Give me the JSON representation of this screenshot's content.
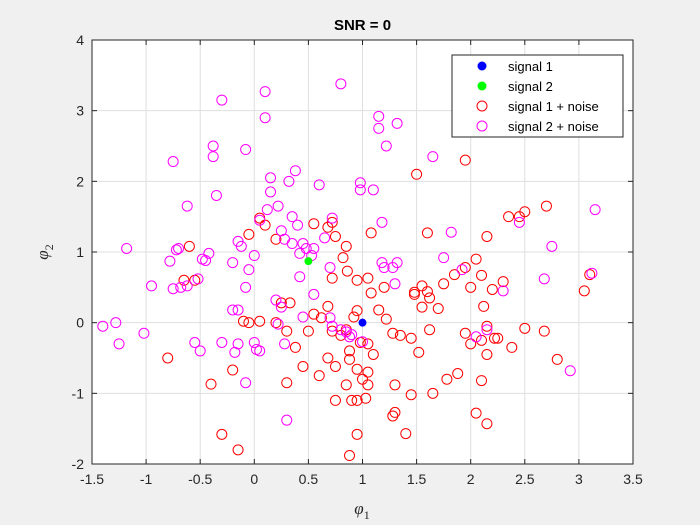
{
  "chart_data": {
    "type": "scatter",
    "title": "SNR = 0",
    "xlabel": "φ",
    "xlabel_sub": "1",
    "ylabel": "φ",
    "ylabel_sub": "2",
    "xlim": [
      -1.5,
      3.5
    ],
    "ylim": [
      -2,
      4
    ],
    "xticks": [
      "-1.5",
      "-1",
      "-0.5",
      "0",
      "0.5",
      "1",
      "1.5",
      "2",
      "2.5",
      "3",
      "3.5"
    ],
    "yticks": [
      "-2",
      "-1",
      "0",
      "1",
      "2",
      "3",
      "4"
    ],
    "grid": true,
    "legend_position": "top-right",
    "colors": {
      "signal1": "#0000ff",
      "signal2": "#00ff00",
      "noise1": "#ff0000",
      "noise2": "#ff00ff"
    },
    "series": [
      {
        "name": "signal 1",
        "marker": "filled-circle",
        "color": "#0000ff",
        "points": [
          [
            1.0,
            0.0
          ]
        ]
      },
      {
        "name": "signal 2",
        "marker": "filled-circle",
        "color": "#00ff00",
        "points": [
          [
            0.5,
            0.87
          ]
        ]
      },
      {
        "name": "signal 1 + noise",
        "marker": "open-circle",
        "color": "#ff0000",
        "points": [
          [
            0.05,
            1.48
          ],
          [
            0.1,
            1.38
          ],
          [
            -0.05,
            1.25
          ],
          [
            0.2,
            1.18
          ],
          [
            0.55,
            1.4
          ],
          [
            0.72,
            1.42
          ],
          [
            0.68,
            1.35
          ],
          [
            0.75,
            1.22
          ],
          [
            0.85,
            1.08
          ],
          [
            0.82,
            0.92
          ],
          [
            1.08,
            1.27
          ],
          [
            0.72,
            0.63
          ],
          [
            0.86,
            0.73
          ],
          [
            0.95,
            0.6
          ],
          [
            1.05,
            0.63
          ],
          [
            1.08,
            0.42
          ],
          [
            1.2,
            0.5
          ],
          [
            1.15,
            0.18
          ],
          [
            1.22,
            0.05
          ],
          [
            1.28,
            -0.15
          ],
          [
            0.95,
            0.17
          ],
          [
            0.92,
            0.08
          ],
          [
            0.85,
            -0.1
          ],
          [
            0.8,
            -0.18
          ],
          [
            0.72,
            -0.12
          ],
          [
            0.68,
            0.23
          ],
          [
            0.62,
            0.07
          ],
          [
            0.55,
            0.12
          ],
          [
            0.5,
            -0.12
          ],
          [
            0.3,
            -0.12
          ],
          [
            0.2,
            0.0
          ],
          [
            0.05,
            0.02
          ],
          [
            -0.05,
            0.0
          ],
          [
            -0.1,
            0.02
          ],
          [
            0.25,
            0.28
          ],
          [
            0.33,
            0.28
          ],
          [
            1.48,
            0.43
          ],
          [
            1.48,
            0.4
          ],
          [
            1.55,
            0.52
          ],
          [
            1.6,
            0.44
          ],
          [
            1.55,
            0.22
          ],
          [
            1.7,
            0.2
          ],
          [
            1.62,
            0.35
          ],
          [
            1.6,
            1.27
          ],
          [
            1.75,
            0.55
          ],
          [
            1.85,
            0.68
          ],
          [
            1.95,
            0.78
          ],
          [
            2.1,
            0.67
          ],
          [
            2.0,
            0.5
          ],
          [
            2.05,
            0.9
          ],
          [
            2.15,
            1.22
          ],
          [
            2.2,
            0.47
          ],
          [
            2.3,
            0.58
          ],
          [
            2.35,
            1.5
          ],
          [
            2.45,
            1.5
          ],
          [
            2.5,
            1.57
          ],
          [
            2.7,
            1.65
          ],
          [
            3.05,
            0.45
          ],
          [
            3.1,
            0.68
          ],
          [
            1.95,
            2.3
          ],
          [
            1.5,
            2.1
          ],
          [
            1.35,
            -0.18
          ],
          [
            1.45,
            -0.22
          ],
          [
            1.62,
            -0.1
          ],
          [
            1.52,
            -0.42
          ],
          [
            1.95,
            -0.15
          ],
          [
            2.0,
            -0.3
          ],
          [
            2.1,
            -0.25
          ],
          [
            2.15,
            -0.45
          ],
          [
            2.22,
            -0.22
          ],
          [
            2.25,
            -0.22
          ],
          [
            2.38,
            -0.35
          ],
          [
            2.5,
            -0.08
          ],
          [
            2.68,
            -0.12
          ],
          [
            2.8,
            -0.52
          ],
          [
            2.1,
            -0.82
          ],
          [
            1.88,
            -0.72
          ],
          [
            1.78,
            -0.8
          ],
          [
            1.65,
            -1.0
          ],
          [
            1.45,
            -1.02
          ],
          [
            1.3,
            -0.88
          ],
          [
            1.3,
            -1.27
          ],
          [
            1.28,
            -1.32
          ],
          [
            1.4,
            -1.57
          ],
          [
            1.05,
            -0.88
          ],
          [
            1.05,
            -0.7
          ],
          [
            1.0,
            -0.8
          ],
          [
            0.95,
            -0.66
          ],
          [
            0.88,
            -0.52
          ],
          [
            0.88,
            -0.4
          ],
          [
            0.98,
            -0.28
          ],
          [
            1.05,
            -0.3
          ],
          [
            1.1,
            -0.45
          ],
          [
            0.75,
            -0.62
          ],
          [
            0.68,
            -0.5
          ],
          [
            0.6,
            -0.75
          ],
          [
            0.45,
            -0.62
          ],
          [
            0.38,
            -0.35
          ],
          [
            0.3,
            -0.85
          ],
          [
            0.75,
            -1.1
          ],
          [
            0.85,
            -0.88
          ],
          [
            0.9,
            -1.1
          ],
          [
            0.95,
            -1.1
          ],
          [
            1.03,
            -1.07
          ],
          [
            0.95,
            -1.58
          ],
          [
            0.88,
            -1.88
          ],
          [
            -0.3,
            -1.58
          ],
          [
            -0.15,
            -1.8
          ],
          [
            -0.2,
            -0.67
          ],
          [
            -0.4,
            -0.87
          ],
          [
            -0.8,
            -0.5
          ],
          [
            -0.55,
            0.6
          ],
          [
            -0.65,
            0.6
          ],
          [
            -0.6,
            1.08
          ],
          [
            2.05,
            -1.28
          ],
          [
            2.15,
            -1.43
          ],
          [
            2.15,
            -0.05
          ],
          [
            2.12,
            0.23
          ]
        ]
      },
      {
        "name": "signal 2 + noise",
        "marker": "open-circle",
        "color": "#ff00ff",
        "points": [
          [
            -1.4,
            -0.05
          ],
          [
            -1.28,
            0.0
          ],
          [
            -1.25,
            -0.3
          ],
          [
            -1.02,
            -0.15
          ],
          [
            -1.18,
            1.05
          ],
          [
            -0.95,
            0.52
          ],
          [
            -0.78,
            0.87
          ],
          [
            -0.75,
            0.48
          ],
          [
            -0.72,
            1.03
          ],
          [
            -0.7,
            1.05
          ],
          [
            -0.68,
            0.5
          ],
          [
            -0.62,
            0.52
          ],
          [
            -0.52,
            0.62
          ],
          [
            -0.48,
            0.9
          ],
          [
            -0.45,
            0.88
          ],
          [
            -0.42,
            0.98
          ],
          [
            -0.5,
            -0.4
          ],
          [
            -0.3,
            -0.28
          ],
          [
            -0.15,
            -0.3
          ],
          [
            -0.18,
            -0.42
          ],
          [
            -0.08,
            -0.85
          ],
          [
            0.02,
            -0.38
          ],
          [
            0.0,
            -0.28
          ],
          [
            -0.2,
            0.18
          ],
          [
            -0.15,
            0.18
          ],
          [
            -0.2,
            0.85
          ],
          [
            -0.15,
            1.15
          ],
          [
            -0.08,
            0.5
          ],
          [
            -0.05,
            0.75
          ],
          [
            0.0,
            0.95
          ],
          [
            -0.12,
            1.08
          ],
          [
            0.05,
            1.45
          ],
          [
            0.12,
            1.6
          ],
          [
            0.15,
            1.85
          ],
          [
            0.15,
            2.05
          ],
          [
            0.22,
            1.65
          ],
          [
            0.25,
            1.3
          ],
          [
            0.28,
            1.18
          ],
          [
            0.35,
            1.5
          ],
          [
            0.4,
            1.38
          ],
          [
            0.35,
            1.12
          ],
          [
            0.42,
            0.98
          ],
          [
            0.45,
            1.12
          ],
          [
            0.48,
            1.05
          ],
          [
            0.53,
            0.95
          ],
          [
            0.55,
            1.05
          ],
          [
            0.42,
            0.65
          ],
          [
            0.38,
            2.15
          ],
          [
            0.32,
            2.0
          ],
          [
            0.6,
            1.95
          ],
          [
            0.65,
            1.2
          ],
          [
            0.7,
            0.78
          ],
          [
            0.72,
            1.48
          ],
          [
            0.55,
            0.4
          ],
          [
            0.45,
            0.08
          ],
          [
            0.2,
            0.32
          ],
          [
            0.25,
            0.22
          ],
          [
            0.22,
            -0.02
          ],
          [
            0.28,
            -0.3
          ],
          [
            0.3,
            -1.38
          ],
          [
            0.05,
            -0.4
          ],
          [
            -0.55,
            -0.28
          ],
          [
            -0.35,
            1.8
          ],
          [
            -0.38,
            2.35
          ],
          [
            -0.38,
            2.5
          ],
          [
            -0.3,
            3.15
          ],
          [
            -0.08,
            2.45
          ],
          [
            0.1,
            2.9
          ],
          [
            0.1,
            3.27
          ],
          [
            -0.75,
            2.28
          ],
          [
            -0.62,
            1.65
          ],
          [
            0.8,
            3.38
          ],
          [
            0.98,
            1.98
          ],
          [
            0.98,
            1.88
          ],
          [
            1.1,
            1.88
          ],
          [
            1.15,
            2.75
          ],
          [
            1.15,
            2.92
          ],
          [
            1.22,
            2.5
          ],
          [
            1.32,
            2.82
          ],
          [
            1.18,
            1.42
          ],
          [
            1.18,
            0.85
          ],
          [
            1.2,
            0.78
          ],
          [
            1.28,
            0.78
          ],
          [
            1.32,
            0.85
          ],
          [
            1.3,
            0.55
          ],
          [
            1.65,
            2.35
          ],
          [
            1.82,
            1.28
          ],
          [
            1.75,
            0.92
          ],
          [
            1.92,
            0.75
          ],
          [
            2.45,
            1.42
          ],
          [
            2.75,
            1.08
          ],
          [
            3.15,
            1.6
          ],
          [
            3.12,
            0.7
          ],
          [
            2.68,
            0.62
          ],
          [
            2.3,
            0.45
          ],
          [
            2.15,
            -0.1
          ],
          [
            2.05,
            -0.2
          ],
          [
            2.92,
            -0.68
          ],
          [
            0.7,
            0.07
          ],
          [
            0.72,
            -0.05
          ],
          [
            0.8,
            -0.1
          ],
          [
            0.85,
            -0.13
          ],
          [
            0.88,
            -0.2
          ],
          [
            0.9,
            -0.17
          ],
          [
            1.0,
            -0.27
          ]
        ]
      }
    ]
  }
}
